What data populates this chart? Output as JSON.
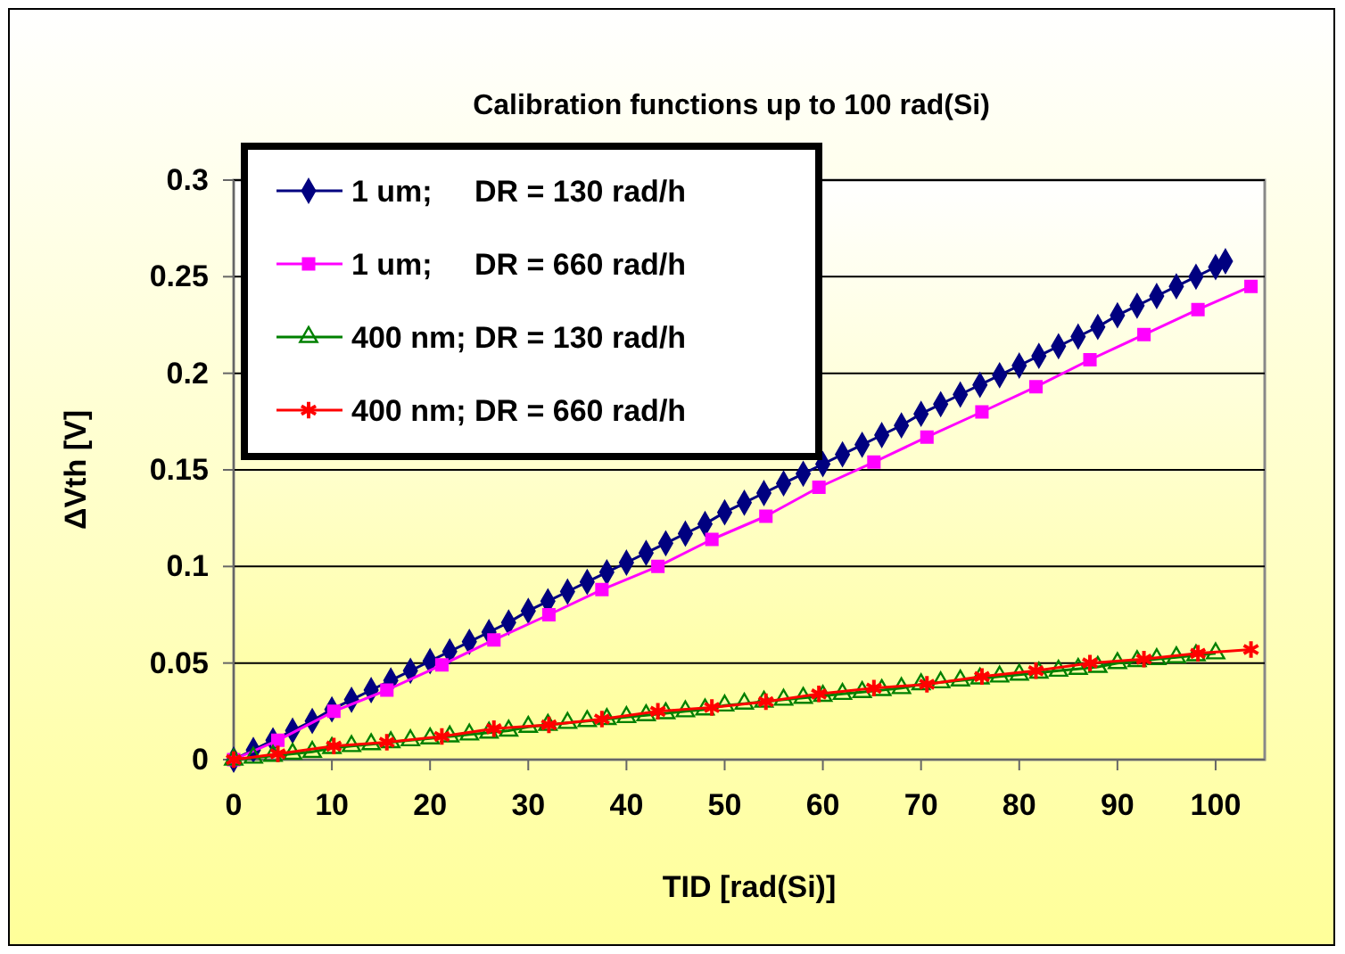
{
  "chart_data": {
    "type": "line",
    "title": "Calibration functions up to 100 rad(Si)",
    "xlabel": "TID [rad(Si)]",
    "ylabel": "ΔVth [V]",
    "xlim": [
      0,
      105
    ],
    "xticks": [
      0,
      10,
      20,
      30,
      40,
      50,
      60,
      70,
      80,
      90,
      100
    ],
    "ylim": [
      0,
      0.3
    ],
    "yticks": [
      0,
      0.05,
      0.1,
      0.15,
      0.2,
      0.25,
      0.3
    ],
    "grid": "y",
    "legend": "top left",
    "series": [
      {
        "name": "1 um;     DR = 130 rad/h",
        "color": "#000080",
        "marker": "diamond",
        "x": [
          0,
          2,
          4,
          6,
          8,
          10,
          12,
          14,
          16,
          18,
          20,
          22,
          24,
          26,
          28,
          30,
          32,
          34,
          36,
          38,
          40,
          42,
          44,
          46,
          48,
          50,
          52,
          54,
          56,
          58,
          60,
          62,
          64,
          66,
          68,
          70,
          72,
          74,
          76,
          78,
          80,
          82,
          84,
          86,
          88,
          90,
          92,
          94,
          96,
          98,
          100,
          101
        ],
        "values": [
          0,
          0.005,
          0.01,
          0.015,
          0.02,
          0.026,
          0.031,
          0.036,
          0.041,
          0.046,
          0.051,
          0.056,
          0.061,
          0.066,
          0.071,
          0.077,
          0.082,
          0.087,
          0.092,
          0.097,
          0.102,
          0.107,
          0.112,
          0.117,
          0.122,
          0.128,
          0.133,
          0.138,
          0.143,
          0.148,
          0.153,
          0.158,
          0.163,
          0.168,
          0.173,
          0.179,
          0.184,
          0.189,
          0.194,
          0.199,
          0.204,
          0.209,
          0.214,
          0.219,
          0.224,
          0.23,
          0.235,
          0.24,
          0.245,
          0.25,
          0.255,
          0.258
        ]
      },
      {
        "name": "1 um;     DR = 660 rad/h",
        "color": "#ff00ff",
        "marker": "square",
        "x": [
          0,
          4.5,
          10.2,
          15.6,
          21.2,
          26.5,
          32.1,
          37.5,
          43.2,
          48.7,
          54.2,
          59.6,
          65.2,
          70.6,
          76.2,
          81.7,
          87.2,
          92.7,
          98.2,
          103.6
        ],
        "values": [
          0,
          0.01,
          0.025,
          0.036,
          0.049,
          0.062,
          0.075,
          0.088,
          0.1,
          0.114,
          0.126,
          0.141,
          0.154,
          0.167,
          0.18,
          0.193,
          0.207,
          0.22,
          0.233,
          0.245
        ]
      },
      {
        "name": "400 nm; DR = 130 rad/h",
        "color": "#008000",
        "marker": "triangle",
        "x": [
          0,
          2,
          4,
          6,
          8,
          10,
          12,
          14,
          16,
          18,
          20,
          22,
          24,
          26,
          28,
          30,
          32,
          34,
          36,
          38,
          40,
          42,
          44,
          46,
          48,
          50,
          52,
          54,
          56,
          58,
          60,
          62,
          64,
          66,
          68,
          70,
          72,
          74,
          76,
          78,
          80,
          82,
          84,
          86,
          88,
          90,
          92,
          94,
          96,
          98,
          100
        ],
        "values": [
          0,
          0.001,
          0.002,
          0.003,
          0.004,
          0.006,
          0.007,
          0.008,
          0.009,
          0.01,
          0.011,
          0.012,
          0.013,
          0.014,
          0.015,
          0.017,
          0.018,
          0.019,
          0.02,
          0.021,
          0.022,
          0.023,
          0.024,
          0.025,
          0.026,
          0.028,
          0.029,
          0.03,
          0.031,
          0.032,
          0.033,
          0.034,
          0.035,
          0.036,
          0.037,
          0.039,
          0.04,
          0.041,
          0.042,
          0.043,
          0.044,
          0.045,
          0.046,
          0.047,
          0.048,
          0.05,
          0.051,
          0.052,
          0.053,
          0.054,
          0.055
        ]
      },
      {
        "name": "400 nm; DR = 660 rad/h",
        "color": "#ff0000",
        "marker": "cross",
        "x": [
          0,
          4.5,
          10.2,
          15.6,
          21.2,
          26.5,
          32.1,
          37.5,
          43.2,
          48.7,
          54.2,
          59.6,
          65.2,
          70.6,
          76.2,
          81.7,
          87.2,
          92.7,
          98.2,
          103.6
        ],
        "values": [
          0,
          0.003,
          0.007,
          0.009,
          0.012,
          0.016,
          0.018,
          0.021,
          0.025,
          0.027,
          0.03,
          0.034,
          0.037,
          0.039,
          0.043,
          0.046,
          0.05,
          0.052,
          0.055,
          0.057
        ]
      }
    ]
  }
}
